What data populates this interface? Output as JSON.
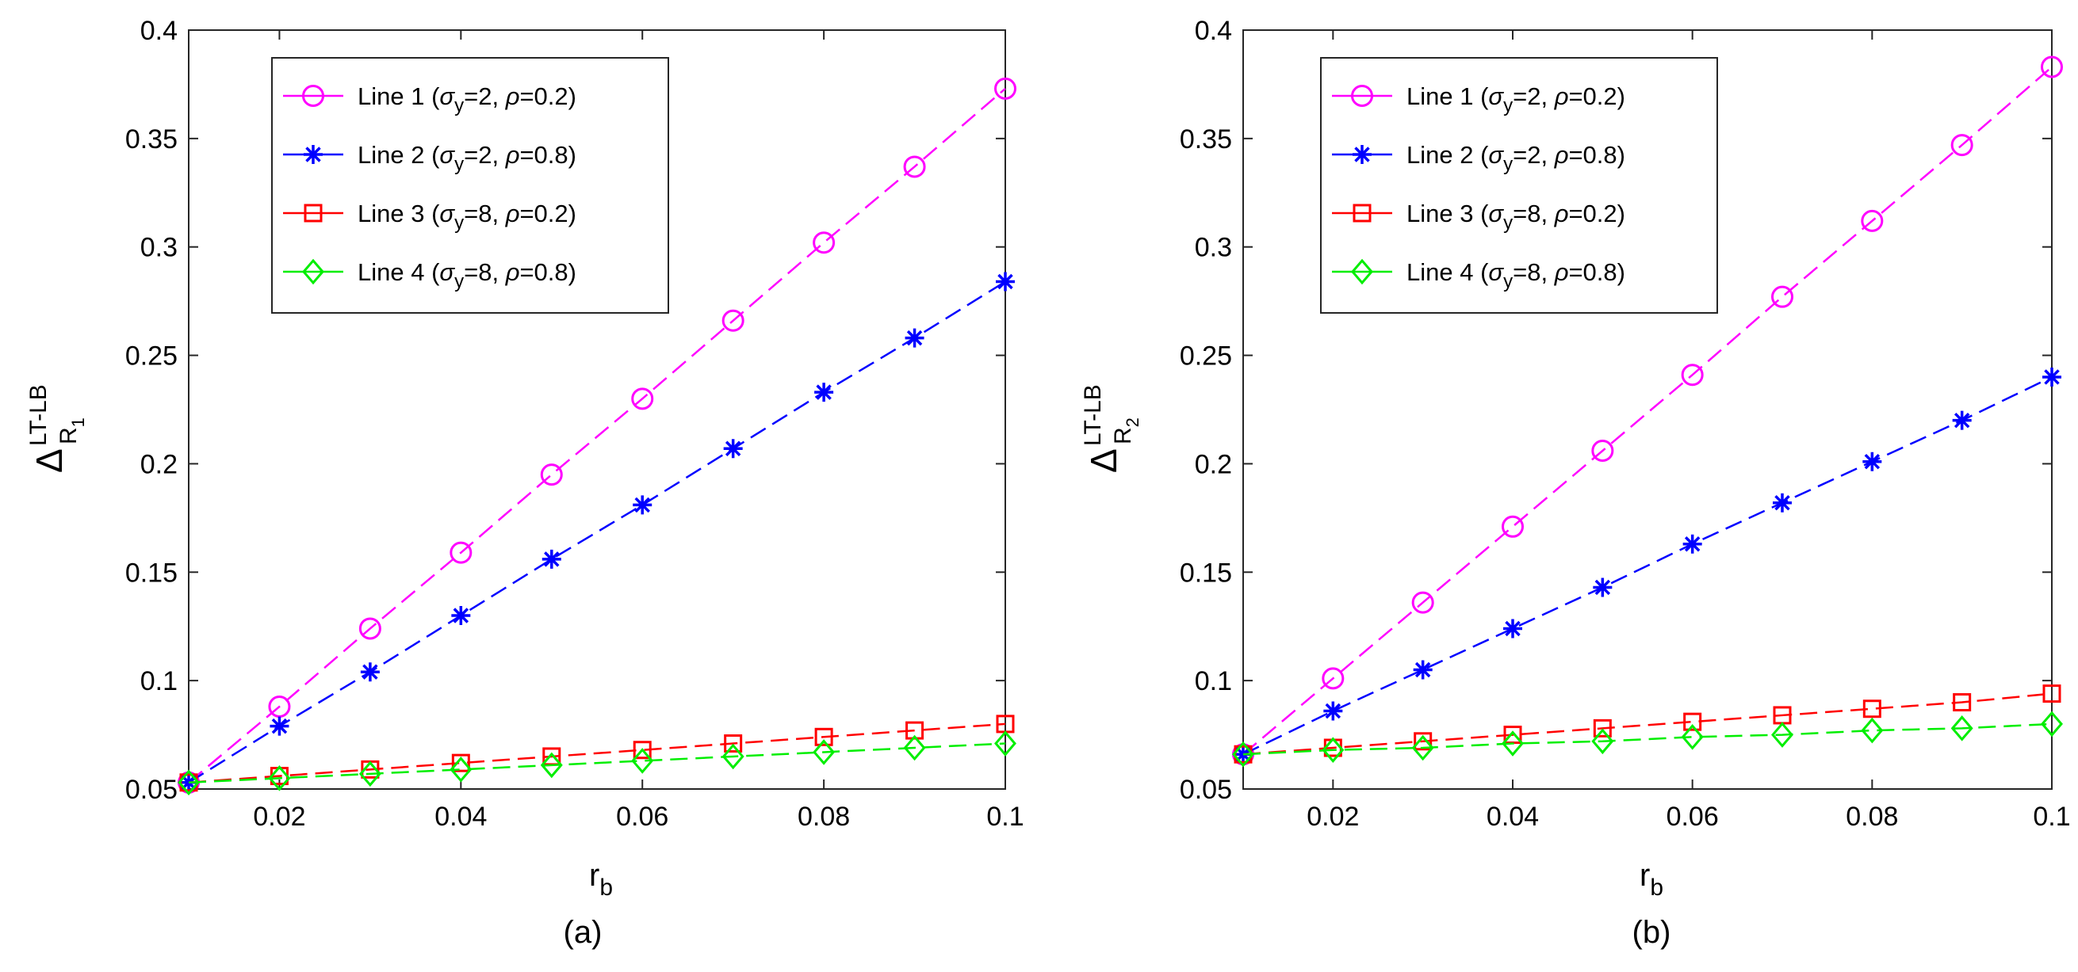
{
  "chart_data": [
    {
      "type": "line",
      "caption": "(a)",
      "xlabel": {
        "main": "r",
        "sub": "b"
      },
      "ylabel": {
        "main": "Δ",
        "sup": "LT-LB",
        "sub": "R",
        "subsub": "1"
      },
      "xlim": [
        0.01,
        0.1
      ],
      "ylim": [
        0.05,
        0.4
      ],
      "xticks": [
        0.02,
        0.04,
        0.06,
        0.08,
        0.1
      ],
      "xtick_labels": [
        "0.02",
        "0.04",
        "0.06",
        "0.08",
        "0.1"
      ],
      "yticks": [
        0.05,
        0.1,
        0.15,
        0.2,
        0.25,
        0.3,
        0.35,
        0.4
      ],
      "ytick_labels": [
        "0.05",
        "0.1",
        "0.15",
        "0.2",
        "0.25",
        "0.3",
        "0.35",
        "0.4"
      ],
      "x": [
        0.01,
        0.02,
        0.03,
        0.04,
        0.05,
        0.06,
        0.07,
        0.08,
        0.09,
        0.1
      ],
      "legend_position": "top-left",
      "series": [
        {
          "name": "Line 1",
          "sigma": "2",
          "rho": "0.2",
          "color": "#ff00ff",
          "marker": "circle",
          "values": [
            0.053,
            0.088,
            0.124,
            0.159,
            0.195,
            0.23,
            0.266,
            0.302,
            0.337,
            0.373
          ]
        },
        {
          "name": "Line 2",
          "sigma": "2",
          "rho": "0.8",
          "color": "#0000ff",
          "marker": "asterisk",
          "values": [
            0.053,
            0.079,
            0.104,
            0.13,
            0.156,
            0.181,
            0.207,
            0.233,
            0.258,
            0.284
          ]
        },
        {
          "name": "Line 3",
          "sigma": "8",
          "rho": "0.2",
          "color": "#ff0000",
          "marker": "square",
          "values": [
            0.053,
            0.056,
            0.059,
            0.062,
            0.065,
            0.068,
            0.071,
            0.074,
            0.077,
            0.08
          ]
        },
        {
          "name": "Line 4",
          "sigma": "8",
          "rho": "0.8",
          "color": "#00ee00",
          "marker": "diamond",
          "values": [
            0.053,
            0.055,
            0.057,
            0.059,
            0.061,
            0.063,
            0.065,
            0.067,
            0.069,
            0.071
          ]
        }
      ]
    },
    {
      "type": "line",
      "caption": "(b)",
      "xlabel": {
        "main": "r",
        "sub": "b"
      },
      "ylabel": {
        "main": "Δ",
        "sup": "LT-LB",
        "sub": "R",
        "subsub": "2"
      },
      "xlim": [
        0.01,
        0.1
      ],
      "ylim": [
        0.05,
        0.4
      ],
      "xticks": [
        0.02,
        0.04,
        0.06,
        0.08,
        0.1
      ],
      "xtick_labels": [
        "0.02",
        "0.04",
        "0.06",
        "0.08",
        "0.1"
      ],
      "yticks": [
        0.05,
        0.1,
        0.15,
        0.2,
        0.25,
        0.3,
        0.35,
        0.4
      ],
      "ytick_labels": [
        "0.05",
        "0.1",
        "0.15",
        "0.2",
        "0.25",
        "0.3",
        "0.35",
        "0.4"
      ],
      "x": [
        0.01,
        0.02,
        0.03,
        0.04,
        0.05,
        0.06,
        0.07,
        0.08,
        0.09,
        0.1
      ],
      "legend_position": "top-left",
      "series": [
        {
          "name": "Line 1",
          "sigma": "2",
          "rho": "0.2",
          "color": "#ff00ff",
          "marker": "circle",
          "values": [
            0.066,
            0.101,
            0.136,
            0.171,
            0.206,
            0.241,
            0.277,
            0.312,
            0.347,
            0.383
          ]
        },
        {
          "name": "Line 2",
          "sigma": "2",
          "rho": "0.8",
          "color": "#0000ff",
          "marker": "asterisk",
          "values": [
            0.066,
            0.086,
            0.105,
            0.124,
            0.143,
            0.163,
            0.182,
            0.201,
            0.22,
            0.24
          ]
        },
        {
          "name": "Line 3",
          "sigma": "8",
          "rho": "0.2",
          "color": "#ff0000",
          "marker": "square",
          "values": [
            0.066,
            0.069,
            0.072,
            0.075,
            0.078,
            0.081,
            0.084,
            0.087,
            0.09,
            0.094
          ]
        },
        {
          "name": "Line 4",
          "sigma": "8",
          "rho": "0.8",
          "color": "#00ee00",
          "marker": "diamond",
          "values": [
            0.066,
            0.068,
            0.069,
            0.071,
            0.072,
            0.074,
            0.075,
            0.077,
            0.078,
            0.08
          ]
        }
      ]
    }
  ]
}
